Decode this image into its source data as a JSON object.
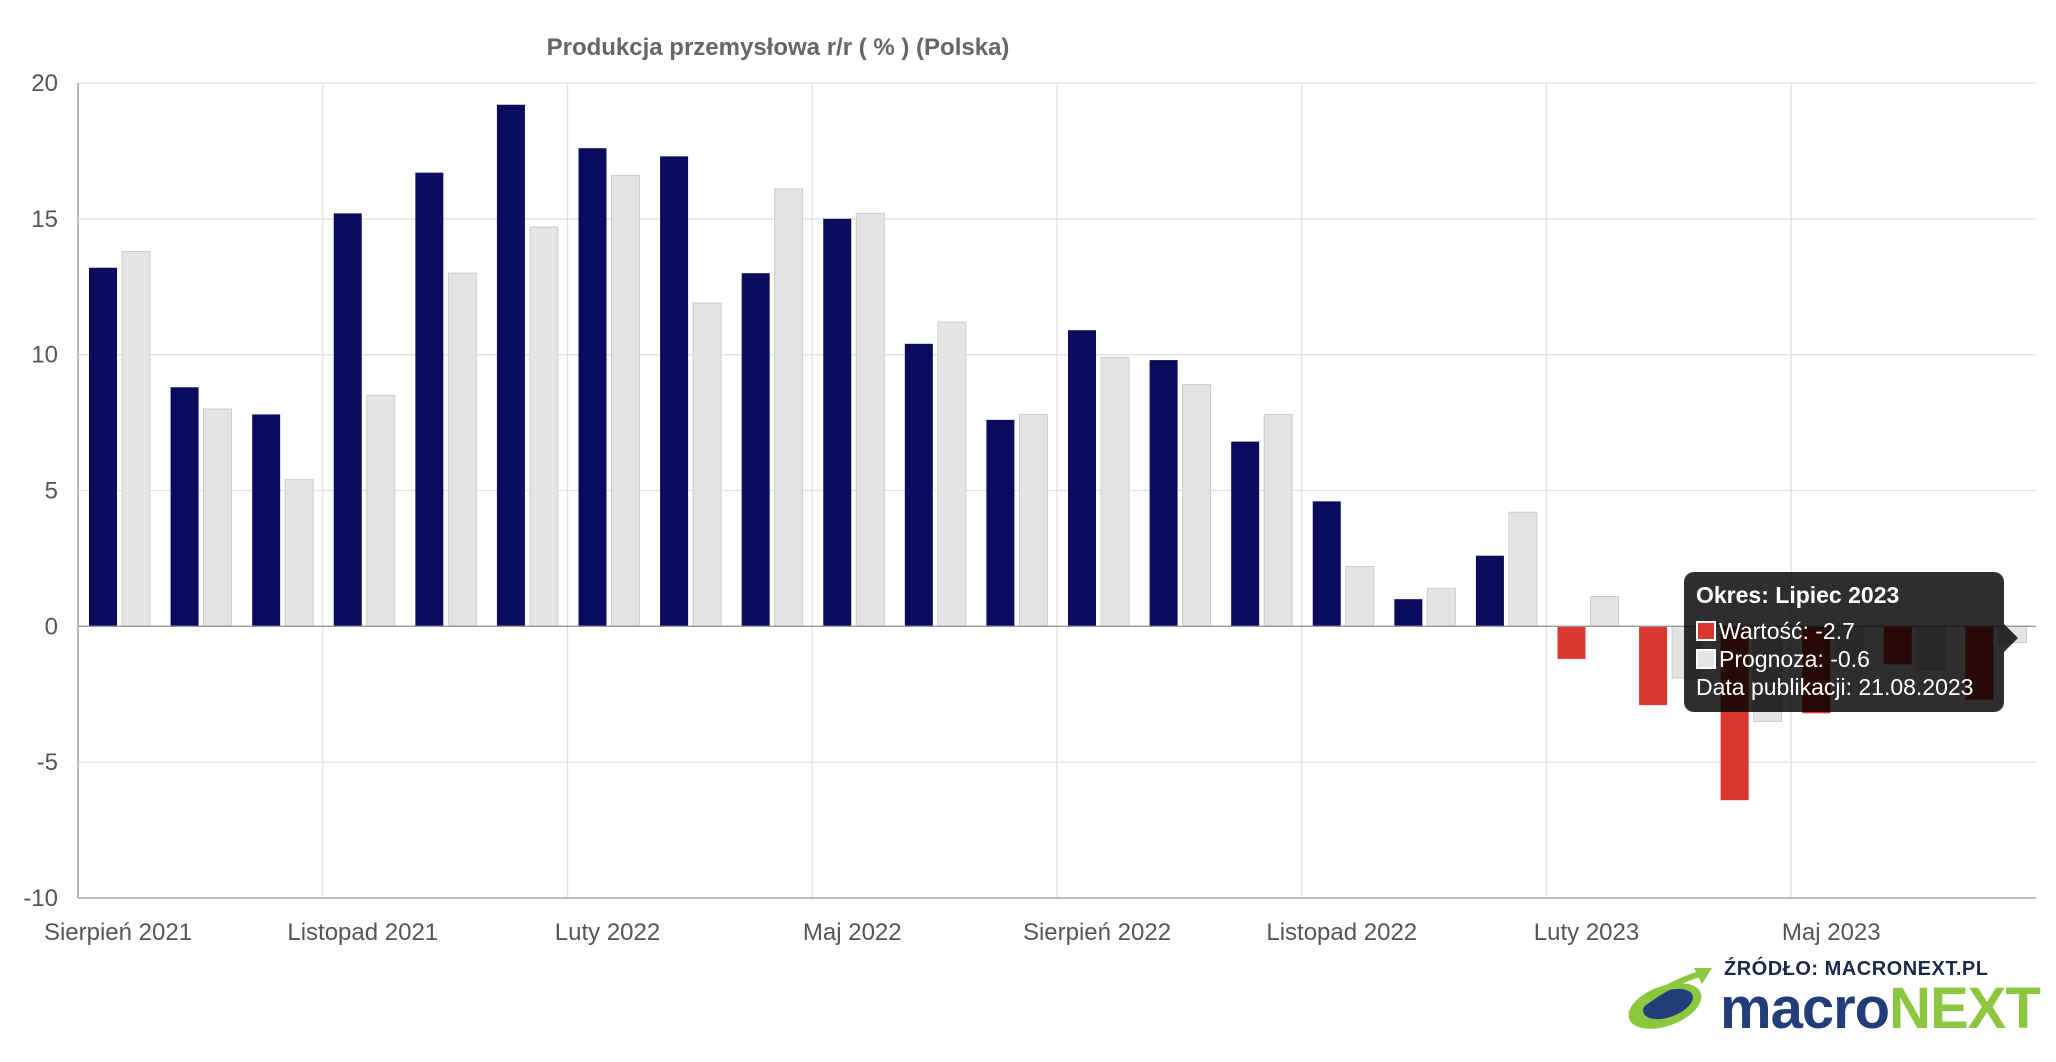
{
  "chart_data": {
    "type": "bar",
    "title": "Produkcja przemysłowa r/r ( % ) (Polska)",
    "xlabel": "",
    "ylabel": "",
    "ylim": [
      -10,
      20
    ],
    "yticks": [
      "20",
      "15",
      "10",
      "5",
      "0",
      "-5",
      "-10"
    ],
    "x_tick_labels": [
      "Sierpień 2021",
      "Listopad 2021",
      "Luty 2022",
      "Maj 2022",
      "Sierpień 2022",
      "Listopad 2022",
      "Luty 2023",
      "Maj 2023"
    ],
    "categories": [
      "Sierpień 2021",
      "Wrzesień 2021",
      "Październik 2021",
      "Listopad 2021",
      "Grudzień 2021",
      "Styczeń 2022",
      "Luty 2022",
      "Marzec 2022",
      "Kwiecień 2022",
      "Maj 2022",
      "Czerwiec 2022",
      "Lipiec 2022",
      "Sierpień 2022",
      "Wrzesień 2022",
      "Październik 2022",
      "Listopad 2022",
      "Grudzień 2022",
      "Styczeń 2023",
      "Luty 2023",
      "Marzec 2023",
      "Kwiecień 2023",
      "Maj 2023",
      "Czerwiec 2023",
      "Lipiec 2023"
    ],
    "series": [
      {
        "name": "Wartość",
        "values": [
          13.2,
          8.8,
          7.8,
          15.2,
          16.7,
          19.2,
          17.6,
          17.3,
          13.0,
          15.0,
          10.4,
          7.6,
          10.9,
          9.8,
          6.8,
          4.6,
          1.0,
          2.6,
          -1.2,
          -2.9,
          -6.4,
          -3.2,
          -1.4,
          -2.7
        ]
      },
      {
        "name": "Prognoza",
        "values": [
          13.8,
          8.0,
          5.4,
          8.5,
          13.0,
          14.7,
          16.6,
          11.9,
          16.1,
          15.2,
          11.2,
          7.8,
          9.9,
          8.9,
          7.8,
          2.2,
          1.4,
          4.2,
          1.1,
          -1.9,
          -3.5,
          -1.3,
          -1.6,
          -0.6
        ]
      }
    ],
    "colors": {
      "positive": "#0c0c5e",
      "negative": "#d9372f",
      "forecast": "#e4e4e4",
      "forecast_border": "#cccccc"
    },
    "grid": true,
    "legend": "none"
  },
  "tooltip": {
    "title": "Okres: Lipiec 2023",
    "value_line": "Wartość: -2.7",
    "forecast_line": "Prognoza: -0.6",
    "date_line": "Data publikacji: 21.08.2023"
  },
  "source": {
    "label": "ŹRÓDŁO: MACRONEXT.PL",
    "logo_part1": "macro",
    "logo_part2": "NEXT",
    "logo_icon": "globe-arrow-icon"
  }
}
